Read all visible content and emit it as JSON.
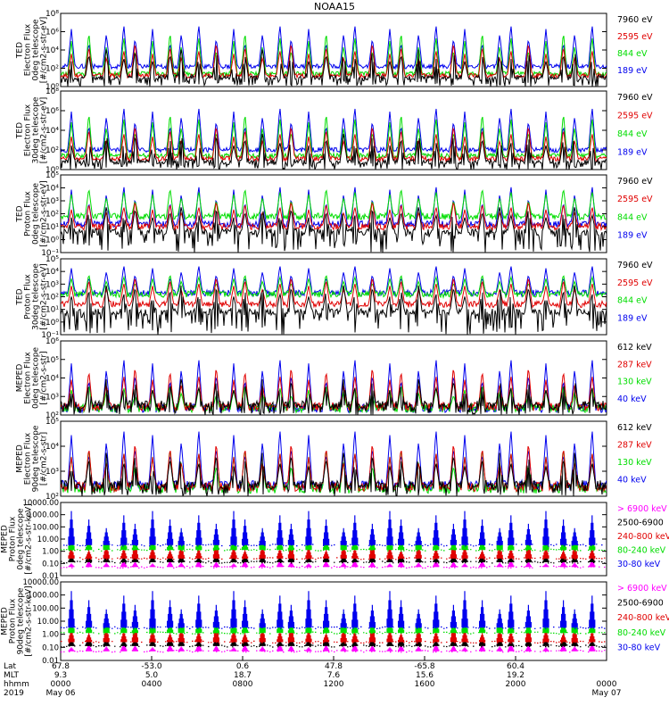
{
  "title": "NOAA15",
  "colors": {
    "black": "#000000",
    "red": "#e00000",
    "green": "#00dd00",
    "blue": "#0000ee",
    "magenta": "#ff00ff",
    "axis": "#000000"
  },
  "chart_data": [
    {
      "type": "line",
      "ylabel": [
        "TED",
        "Electron Flux",
        "0deg telescope",
        "[#/cm2-s-str-eV]"
      ],
      "ytick_labels": [
        "10⁰",
        "10²",
        "10⁴",
        "10⁶",
        "10⁸"
      ],
      "ylim_log10": [
        0,
        8
      ],
      "series": [
        {
          "name": "7960 eV",
          "color": "#000000",
          "base": 1.0,
          "spike": 3.2
        },
        {
          "name": "2595 eV",
          "color": "#e00000",
          "base": 1.2,
          "spike": 3.6
        },
        {
          "name": "844 eV",
          "color": "#00dd00",
          "base": 1.4,
          "spike": 4.6
        },
        {
          "name": "189 eV",
          "color": "#0000ee",
          "base": 2.2,
          "spike": 4.6
        }
      ]
    },
    {
      "type": "line",
      "ylabel": [
        "TED",
        "Electron Flux",
        "30deg telescope",
        "[#/cm2-s-str-eV]"
      ],
      "ytick_labels": [
        "10⁰",
        "10²",
        "10⁴",
        "10⁶",
        "10⁸"
      ],
      "ylim_log10": [
        0,
        8
      ],
      "series": [
        {
          "name": "7960 eV",
          "color": "#000000",
          "base": 0.8,
          "spike": 3.0
        },
        {
          "name": "2595 eV",
          "color": "#e00000",
          "base": 1.1,
          "spike": 3.4
        },
        {
          "name": "844 eV",
          "color": "#00dd00",
          "base": 1.4,
          "spike": 4.4
        },
        {
          "name": "189 eV",
          "color": "#0000ee",
          "base": 2.0,
          "spike": 4.4
        }
      ]
    },
    {
      "type": "line",
      "ylabel": [
        "TED",
        "Proton Flux",
        "0deg telescope",
        "[#/cm2-s-str-eV]"
      ],
      "ytick_labels": [
        "10⁻¹",
        "10⁰",
        "10¹",
        "10²",
        "10³",
        "10⁴",
        "10⁵"
      ],
      "ylim_log10": [
        -1,
        5
      ],
      "series": [
        {
          "name": "7960 eV",
          "color": "#000000",
          "base": 0.6,
          "spike": 2.0
        },
        {
          "name": "2595 eV",
          "color": "#e00000",
          "base": 1.0,
          "spike": 2.0
        },
        {
          "name": "844 eV",
          "color": "#00dd00",
          "base": 1.8,
          "spike": 2.2
        },
        {
          "name": "189 eV",
          "color": "#0000ee",
          "base": 1.2,
          "spike": 3.0
        }
      ]
    },
    {
      "type": "line",
      "ylabel": [
        "TED",
        "Proton Flux",
        "30deg telescope",
        "[#/cm2-s-str-eV]"
      ],
      "ytick_labels": [
        "10⁻¹",
        "10⁰",
        "10¹",
        "10²",
        "10³",
        "10⁴",
        "10⁵"
      ],
      "ylim_log10": [
        -1,
        5
      ],
      "series": [
        {
          "name": "7960 eV",
          "color": "#000000",
          "base": 0.8,
          "spike": 2.2
        },
        {
          "name": "2595 eV",
          "color": "#e00000",
          "base": 1.4,
          "spike": 2.2
        },
        {
          "name": "844 eV",
          "color": "#00dd00",
          "base": 2.2,
          "spike": 1.6
        },
        {
          "name": "189 eV",
          "color": "#0000ee",
          "base": 2.3,
          "spike": 2.2
        }
      ]
    },
    {
      "type": "line",
      "ylabel": [
        "MEPED",
        "Electron Flux",
        "0deg telescope",
        "[#/cm2-s-str]"
      ],
      "ytick_labels": [
        "10²",
        "10³",
        "10⁴",
        "10⁵",
        "10⁶"
      ],
      "ylim_log10": [
        1.6,
        6.0
      ],
      "series": [
        {
          "name": "612 keV",
          "color": "#000000",
          "base": 2.2,
          "spike": 1.6
        },
        {
          "name": "287 keV",
          "color": "#e00000",
          "base": 2.1,
          "spike": 2.4
        },
        {
          "name": "130 keV",
          "color": "#00dd00",
          "base": 2.0,
          "spike": 1.4
        },
        {
          "name": "40 keV",
          "color": "#0000ee",
          "base": 2.0,
          "spike": 3.0
        }
      ]
    },
    {
      "type": "line",
      "ylabel": [
        "MEPED",
        "Electron Flux",
        "90deg telescope",
        "[#/cm2-s-str]"
      ],
      "ytick_labels": [
        "10²",
        "10³",
        "10⁴",
        "10⁵"
      ],
      "ylim_log10": [
        1.6,
        5.6
      ],
      "series": [
        {
          "name": "612 keV",
          "color": "#000000",
          "base": 2.2,
          "spike": 1.8
        },
        {
          "name": "287 keV",
          "color": "#e00000",
          "base": 2.1,
          "spike": 2.4
        },
        {
          "name": "130 keV",
          "color": "#00dd00",
          "base": 2.0,
          "spike": 2.2
        },
        {
          "name": "40 keV",
          "color": "#0000ee",
          "base": 2.2,
          "spike": 3.0
        }
      ]
    },
    {
      "type": "scatter",
      "ylabel": [
        "MEPED",
        "Proton Flux",
        "0deg telescope",
        "[#/cm2-s-str-keV]"
      ],
      "ytick_labels": [
        "0.01",
        "0.10",
        "1.00",
        "10.00",
        "100.00",
        "1000.00",
        "10000.00"
      ],
      "ylim_log10": [
        -2,
        4
      ],
      "series": [
        {
          "name": "> 6900 keV",
          "color": "#ff00ff",
          "base": -1.3,
          "spike": 0.6
        },
        {
          "name": "2500-6900",
          "color": "#000000",
          "base": -0.9,
          "spike": 0.9
        },
        {
          "name": "240-800 keV",
          "color": "#e00000",
          "base": -0.6,
          "spike": 1.4
        },
        {
          "name": "80-240 keV",
          "color": "#00dd00",
          "base": 0.1,
          "spike": 1.6
        },
        {
          "name": "30-80 keV",
          "color": "#0000ee",
          "base": 0.5,
          "spike": 2.8
        }
      ]
    },
    {
      "type": "scatter",
      "ylabel": [
        "MEPED",
        "Proton Flux",
        "90deg telescope",
        "[#/cm2-s-str-keV]"
      ],
      "ytick_labels": [
        "0.01",
        "0.10",
        "1.00",
        "10.00",
        "100.00",
        "1000.00",
        "10000.00"
      ],
      "ylim_log10": [
        -2,
        4
      ],
      "series": [
        {
          "name": "> 6900 keV",
          "color": "#ff00ff",
          "base": -1.3,
          "spike": 0.6
        },
        {
          "name": "2500-6900",
          "color": "#000000",
          "base": -0.9,
          "spike": 0.9
        },
        {
          "name": "240-800 keV",
          "color": "#e00000",
          "base": -0.6,
          "spike": 1.4
        },
        {
          "name": "80-240 keV",
          "color": "#00dd00",
          "base": 0.1,
          "spike": 1.6
        },
        {
          "name": "30-80 keV",
          "color": "#0000ee",
          "base": 0.5,
          "spike": 2.8
        }
      ]
    }
  ],
  "xaxis": {
    "row_labels": [
      "Lat",
      "MLT",
      "hhmm",
      "2019"
    ],
    "ticks": [
      {
        "lat": "67.8",
        "mlt": "9.3",
        "hhmm": "0000",
        "date": "May 06"
      },
      {
        "lat": "-53.0",
        "mlt": "5.0",
        "hhmm": "0400",
        "date": ""
      },
      {
        "lat": "0.6",
        "mlt": "18.7",
        "hhmm": "0800",
        "date": ""
      },
      {
        "lat": "47.8",
        "mlt": "7.6",
        "hhmm": "1200",
        "date": ""
      },
      {
        "lat": "-65.8",
        "mlt": "15.6",
        "hhmm": "1600",
        "date": ""
      },
      {
        "lat": "60.4",
        "mlt": "19.2",
        "hhmm": "2000",
        "date": ""
      },
      {
        "lat": "",
        "mlt": "",
        "hhmm": "0000",
        "date": "May 07"
      }
    ]
  }
}
